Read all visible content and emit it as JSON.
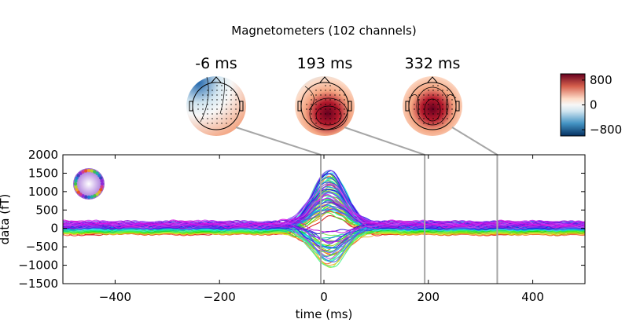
{
  "chart_data": {
    "type": "line",
    "title": "Magnetometers (102 channels)",
    "xlabel": "time (ms)",
    "ylabel": "data (fT)",
    "xlim": [
      -500,
      500
    ],
    "ylim": [
      -1500,
      2000
    ],
    "xticks": [
      -400,
      -200,
      0,
      200,
      400
    ],
    "yticks": [
      2000,
      1500,
      1000,
      500,
      0,
      -500,
      -1000,
      -1500
    ],
    "xtick_labels": [
      "−400",
      "−200",
      "0",
      "200",
      "400"
    ],
    "ytick_labels": [
      "2000",
      "1500",
      "1000",
      "500",
      "0",
      "−500",
      "−1000",
      "−1500"
    ],
    "channel_count": 102,
    "series_envelope": {
      "baseline_range_fT": [
        -300,
        350
      ],
      "peak_time_ms": 10,
      "positive_peak_fT": 1550,
      "negative_peak_fT": -1050
    },
    "topomaps": [
      {
        "time_ms": -6,
        "label": "-6 ms"
      },
      {
        "time_ms": 193,
        "label": "193 ms"
      },
      {
        "time_ms": 332,
        "label": "332 ms"
      }
    ],
    "colorbar": {
      "range": [
        -1000,
        1000
      ],
      "ticks": [
        800,
        0,
        -800
      ],
      "tick_labels": [
        "800",
        "0",
        "−800"
      ]
    }
  },
  "colors": {
    "marker_line": "#a6a6a6",
    "red": "#67001f",
    "blue": "#053061"
  }
}
